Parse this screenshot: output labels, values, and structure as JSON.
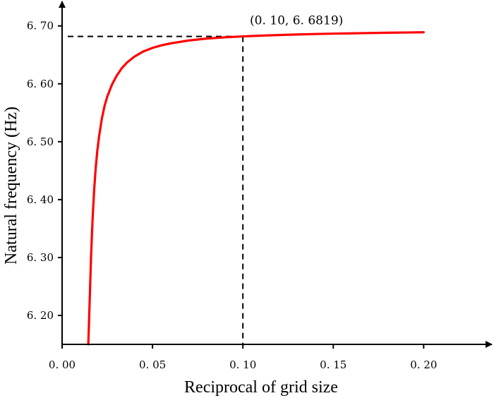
{
  "chart_data": {
    "type": "line",
    "xlabel": "Reciprocal of grid size",
    "ylabel": "Natural frequency (Hz)",
    "xlim": [
      0.0,
      0.235
    ],
    "ylim": [
      6.15,
      6.735
    ],
    "grid": false,
    "x_ticks": [
      {
        "value": 0.0,
        "label": "0. 00"
      },
      {
        "value": 0.05,
        "label": "0. 05"
      },
      {
        "value": 0.1,
        "label": "0. 10"
      },
      {
        "value": 0.15,
        "label": "0. 15"
      },
      {
        "value": 0.2,
        "label": "0. 20"
      }
    ],
    "y_ticks": [
      {
        "value": 6.2,
        "label": "6. 20"
      },
      {
        "value": 6.3,
        "label": "6. 30"
      },
      {
        "value": 6.4,
        "label": "6. 40"
      },
      {
        "value": 6.5,
        "label": "6. 50"
      },
      {
        "value": 6.6,
        "label": "6. 60"
      },
      {
        "value": 6.7,
        "label": "6. 70"
      }
    ],
    "series": [
      {
        "color": "#ff0000",
        "x": [
          0.0145,
          0.0148,
          0.0152,
          0.0156,
          0.016,
          0.0165,
          0.017,
          0.0178,
          0.0186,
          0.0195,
          0.0205,
          0.022,
          0.0235,
          0.025,
          0.0275,
          0.03,
          0.033,
          0.036,
          0.04,
          0.045,
          0.05,
          0.055,
          0.06,
          0.07,
          0.08,
          0.09,
          0.1,
          0.11,
          0.12,
          0.13,
          0.14,
          0.15,
          0.16,
          0.17,
          0.18,
          0.19,
          0.2
        ],
        "y": [
          6.15,
          6.18,
          6.22,
          6.26,
          6.3,
          6.34,
          6.375,
          6.42,
          6.455,
          6.485,
          6.51,
          6.54,
          6.562,
          6.578,
          6.598,
          6.613,
          6.627,
          6.637,
          6.647,
          6.656,
          6.662,
          6.6665,
          6.6698,
          6.6748,
          6.6782,
          6.6803,
          6.6819,
          6.6832,
          6.6843,
          6.6852,
          6.686,
          6.6866,
          6.6872,
          6.6877,
          6.6882,
          6.6886,
          6.689
        ]
      }
    ],
    "annotation": {
      "label": "(0. 10, 6. 6819)",
      "x": 0.1,
      "y": 6.6819
    }
  }
}
